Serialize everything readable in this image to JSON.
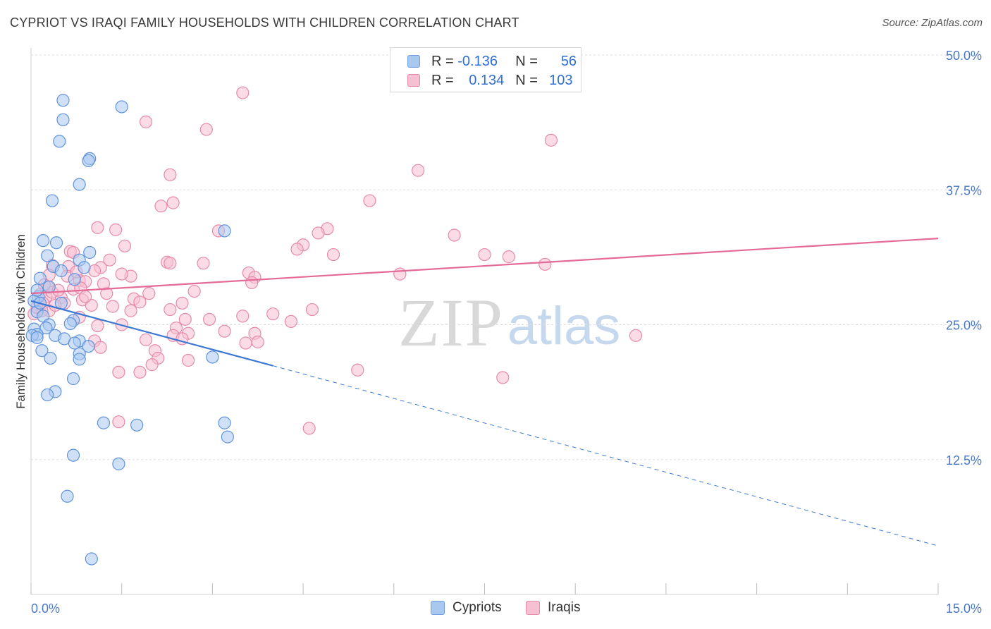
{
  "title": "CYPRIOT VS IRAQI FAMILY HOUSEHOLDS WITH CHILDREN CORRELATION CHART",
  "source": "Source: ZipAtlas.com",
  "watermark": {
    "zip": "ZIP",
    "atlas": "atlas"
  },
  "legend_top": {
    "rows": [
      {
        "r_label": "R =",
        "r_value": "-0.136",
        "n_label": "N =",
        "n_value": "56",
        "color": "#a9c8f0",
        "border": "#6f9fe0"
      },
      {
        "r_label": "R =",
        "r_value": "0.134",
        "n_label": "N =",
        "n_value": "103",
        "color": "#f7bfd2",
        "border": "#e58aaa"
      }
    ]
  },
  "legend_bottom": [
    {
      "label": "Cypriots",
      "color": "#a9c8f0",
      "border": "#6f9fe0"
    },
    {
      "label": "Iraqis",
      "color": "#f7bfd2",
      "border": "#e58aaa"
    }
  ],
  "chart_data": {
    "type": "scatter",
    "title": "CYPRIOT VS IRAQI FAMILY HOUSEHOLDS WITH CHILDREN CORRELATION CHART",
    "xlabel": "",
    "ylabel": "Family Households with Children",
    "xlim": [
      0,
      15
    ],
    "ylim": [
      0,
      52
    ],
    "x_tick_labels": [
      "0.0%",
      "15.0%"
    ],
    "y_ticks": [
      12.5,
      25.0,
      37.5,
      50.0
    ],
    "y_tick_labels": [
      "12.5%",
      "25.0%",
      "37.5%",
      "50.0%"
    ],
    "grid": true,
    "colors": {
      "cypriots": "#3a78d4",
      "iraqis": "#e46a97"
    },
    "series": [
      {
        "name": "Cypriots",
        "trend": {
          "x": [
            0,
            4.0
          ],
          "y": [
            27.2,
            21.2
          ],
          "extended_to": [
            15,
            4.5
          ]
        },
        "points": [
          [
            0.53,
            45.8
          ],
          [
            1.5,
            45.2
          ],
          [
            0.53,
            44.0
          ],
          [
            0.47,
            42.0
          ],
          [
            0.97,
            40.4
          ],
          [
            0.95,
            40.2
          ],
          [
            0.8,
            38.0
          ],
          [
            0.35,
            36.5
          ],
          [
            0.2,
            32.8
          ],
          [
            0.42,
            32.6
          ],
          [
            3.2,
            33.7
          ],
          [
            0.27,
            31.4
          ],
          [
            0.97,
            31.7
          ],
          [
            0.8,
            31.0
          ],
          [
            0.37,
            30.4
          ],
          [
            0.88,
            30.3
          ],
          [
            0.5,
            30.0
          ],
          [
            0.15,
            29.3
          ],
          [
            0.72,
            29.2
          ],
          [
            0.3,
            28.5
          ],
          [
            0.12,
            27.6
          ],
          [
            0.05,
            27.2
          ],
          [
            0.1,
            26.2
          ],
          [
            0.5,
            27.0
          ],
          [
            0.2,
            25.8
          ],
          [
            0.7,
            25.4
          ],
          [
            0.3,
            25.0
          ],
          [
            0.65,
            25.1
          ],
          [
            0.05,
            24.6
          ],
          [
            0.25,
            24.7
          ],
          [
            0.1,
            24.1
          ],
          [
            0.02,
            24.0
          ],
          [
            0.4,
            24.0
          ],
          [
            0.55,
            23.7
          ],
          [
            0.1,
            23.8
          ],
          [
            0.8,
            23.5
          ],
          [
            0.72,
            23.3
          ],
          [
            0.95,
            23.0
          ],
          [
            0.18,
            22.6
          ],
          [
            0.8,
            22.3
          ],
          [
            0.32,
            21.9
          ],
          [
            0.8,
            21.8
          ],
          [
            3.0,
            22.0
          ],
          [
            0.7,
            20.0
          ],
          [
            0.4,
            18.8
          ],
          [
            0.27,
            18.5
          ],
          [
            1.2,
            15.9
          ],
          [
            1.75,
            15.7
          ],
          [
            3.2,
            15.9
          ],
          [
            3.25,
            14.6
          ],
          [
            0.7,
            12.9
          ],
          [
            1.45,
            12.1
          ],
          [
            0.6,
            9.1
          ],
          [
            1.0,
            3.3
          ],
          [
            0.1,
            28.2
          ],
          [
            0.15,
            27.0
          ]
        ]
      },
      {
        "name": "Iraqis",
        "trend": {
          "x": [
            0,
            15
          ],
          "y": [
            27.9,
            33.0
          ]
        },
        "points": [
          [
            3.5,
            46.5
          ],
          [
            1.9,
            43.8
          ],
          [
            2.9,
            43.1
          ],
          [
            8.6,
            42.1
          ],
          [
            6.4,
            39.3
          ],
          [
            2.3,
            38.9
          ],
          [
            5.6,
            36.5
          ],
          [
            2.35,
            36.3
          ],
          [
            2.15,
            36.0
          ],
          [
            1.1,
            34.0
          ],
          [
            1.4,
            33.8
          ],
          [
            3.1,
            33.7
          ],
          [
            4.9,
            33.9
          ],
          [
            4.75,
            33.5
          ],
          [
            7.0,
            33.3
          ],
          [
            1.55,
            32.3
          ],
          [
            4.5,
            32.4
          ],
          [
            4.4,
            32.0
          ],
          [
            0.65,
            31.8
          ],
          [
            0.7,
            31.7
          ],
          [
            1.3,
            31.0
          ],
          [
            5.0,
            31.5
          ],
          [
            7.5,
            31.5
          ],
          [
            7.9,
            31.3
          ],
          [
            2.25,
            30.8
          ],
          [
            2.3,
            30.7
          ],
          [
            2.85,
            30.7
          ],
          [
            0.35,
            30.5
          ],
          [
            0.62,
            30.4
          ],
          [
            1.15,
            30.3
          ],
          [
            1.05,
            30.0
          ],
          [
            8.5,
            30.6
          ],
          [
            0.3,
            29.6
          ],
          [
            3.6,
            29.8
          ],
          [
            6.1,
            29.7
          ],
          [
            1.65,
            29.5
          ],
          [
            3.7,
            29.4
          ],
          [
            0.8,
            29.1
          ],
          [
            0.9,
            29.0
          ],
          [
            3.65,
            28.9
          ],
          [
            0.28,
            28.5
          ],
          [
            0.7,
            28.3
          ],
          [
            0.82,
            28.4
          ],
          [
            1.25,
            27.9
          ],
          [
            1.95,
            27.9
          ],
          [
            0.15,
            27.8
          ],
          [
            0.5,
            27.5
          ],
          [
            0.85,
            27.3
          ],
          [
            0.25,
            27.6
          ],
          [
            1.7,
            27.4
          ],
          [
            0.55,
            27.0
          ],
          [
            1.8,
            27.1
          ],
          [
            0.2,
            27.0
          ],
          [
            2.5,
            27.0
          ],
          [
            1.0,
            26.8
          ],
          [
            1.35,
            26.7
          ],
          [
            0.3,
            26.3
          ],
          [
            1.65,
            26.3
          ],
          [
            2.3,
            26.4
          ],
          [
            0.18,
            26.3
          ],
          [
            4.65,
            26.4
          ],
          [
            0.05,
            26.0
          ],
          [
            4.0,
            26.0
          ],
          [
            2.95,
            25.5
          ],
          [
            3.5,
            25.8
          ],
          [
            0.8,
            25.7
          ],
          [
            2.55,
            25.5
          ],
          [
            4.3,
            25.3
          ],
          [
            1.5,
            25.0
          ],
          [
            2.4,
            24.7
          ],
          [
            3.2,
            24.4
          ],
          [
            2.35,
            24.0
          ],
          [
            2.6,
            24.2
          ],
          [
            3.7,
            24.2
          ],
          [
            2.5,
            23.7
          ],
          [
            1.9,
            23.6
          ],
          [
            3.75,
            23.4
          ],
          [
            3.55,
            23.3
          ],
          [
            1.05,
            23.5
          ],
          [
            1.15,
            22.9
          ],
          [
            2.05,
            22.6
          ],
          [
            2.1,
            21.9
          ],
          [
            2.6,
            21.7
          ],
          [
            2.0,
            21.3
          ],
          [
            5.4,
            20.8
          ],
          [
            1.45,
            20.6
          ],
          [
            1.8,
            20.6
          ],
          [
            7.8,
            20.1
          ],
          [
            10.0,
            24.0
          ],
          [
            1.45,
            16.0
          ],
          [
            4.6,
            15.4
          ],
          [
            0.35,
            28.0
          ],
          [
            0.6,
            29.5
          ],
          [
            1.2,
            28.8
          ],
          [
            0.4,
            26.8
          ],
          [
            0.1,
            26.6
          ],
          [
            0.45,
            28.2
          ],
          [
            1.5,
            29.7
          ],
          [
            0.75,
            29.9
          ],
          [
            0.9,
            27.6
          ],
          [
            2.7,
            28.1
          ],
          [
            0.22,
            28.7
          ],
          [
            1.1,
            24.9
          ]
        ]
      }
    ]
  }
}
